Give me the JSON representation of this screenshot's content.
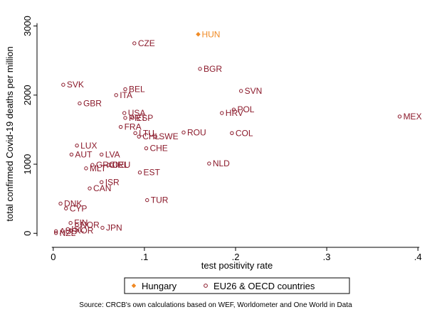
{
  "chart_data": {
    "type": "scatter",
    "xlabel": "test positivity rate",
    "ylabel": "total confirmed Covid-19 deaths per million",
    "xlim": [
      -0.01,
      0.41
    ],
    "ylim": [
      -100,
      3150
    ],
    "xticks": [
      {
        "value": 0,
        "label": "0"
      },
      {
        "value": 0.1,
        "label": ".1"
      },
      {
        "value": 0.2,
        "label": ".2"
      },
      {
        "value": 0.3,
        "label": ".3"
      },
      {
        "value": 0.4,
        "label": ".4"
      }
    ],
    "yticks": [
      {
        "value": 0,
        "label": "0"
      },
      {
        "value": 1000,
        "label": "1000"
      },
      {
        "value": 2000,
        "label": "2000"
      },
      {
        "value": 3000,
        "label": "3000"
      }
    ],
    "grid": false,
    "legend_position": "bottom",
    "colors": {
      "Hungary": "#f08a24",
      "EU26 & OECD countries": "#8b1a2b"
    },
    "series": [
      {
        "name": "Hungary",
        "marker": "filled-diamond",
        "points": [
          {
            "label": "HUN",
            "x": 0.159,
            "y": 2880
          }
        ]
      },
      {
        "name": "EU26 & OECD countries",
        "marker": "hollow-circle",
        "points": [
          {
            "label": "CZE",
            "x": 0.089,
            "y": 2750
          },
          {
            "label": "BGR",
            "x": 0.161,
            "y": 2380
          },
          {
            "label": "SVK",
            "x": 0.011,
            "y": 2150
          },
          {
            "label": "BEL",
            "x": 0.079,
            "y": 2085
          },
          {
            "label": "SVN",
            "x": 0.206,
            "y": 2060
          },
          {
            "label": "ITA",
            "x": 0.069,
            "y": 2000
          },
          {
            "label": "GBR",
            "x": 0.029,
            "y": 1880
          },
          {
            "label": "POL",
            "x": 0.198,
            "y": 1790
          },
          {
            "label": "HRV",
            "x": 0.185,
            "y": 1740
          },
          {
            "label": "MEX",
            "x": 0.38,
            "y": 1690
          },
          {
            "label": "USA",
            "x": 0.078,
            "y": 1740
          },
          {
            "label": "PRT",
            "x": 0.079,
            "y": 1670
          },
          {
            "label": "ESP",
            "x": 0.087,
            "y": 1670
          },
          {
            "label": "FRA",
            "x": 0.074,
            "y": 1540
          },
          {
            "label": "ROU",
            "x": 0.143,
            "y": 1460
          },
          {
            "label": "COL",
            "x": 0.196,
            "y": 1450
          },
          {
            "label": "LTU",
            "x": 0.09,
            "y": 1450
          },
          {
            "label": "CHL",
            "x": 0.094,
            "y": 1400
          },
          {
            "label": "SWE",
            "x": 0.112,
            "y": 1400
          },
          {
            "label": "LUX",
            "x": 0.026,
            "y": 1270
          },
          {
            "label": "CHE",
            "x": 0.102,
            "y": 1230
          },
          {
            "label": "AUT",
            "x": 0.02,
            "y": 1140
          },
          {
            "label": "LVA",
            "x": 0.053,
            "y": 1140
          },
          {
            "label": "NLD",
            "x": 0.171,
            "y": 1010
          },
          {
            "label": "GRC",
            "x": 0.043,
            "y": 990
          },
          {
            "label": "DEU",
            "x": 0.061,
            "y": 990
          },
          {
            "label": "IRL",
            "x": 0.064,
            "y": 990
          },
          {
            "label": "MLT",
            "x": 0.036,
            "y": 940
          },
          {
            "label": "EST",
            "x": 0.095,
            "y": 880
          },
          {
            "label": "ISR",
            "x": 0.053,
            "y": 740
          },
          {
            "label": "CAN",
            "x": 0.04,
            "y": 650
          },
          {
            "label": "TUR",
            "x": 0.103,
            "y": 480
          },
          {
            "label": "DNK",
            "x": 0.008,
            "y": 430
          },
          {
            "label": "CYP",
            "x": 0.014,
            "y": 360
          },
          {
            "label": "FIN",
            "x": 0.019,
            "y": 150
          },
          {
            "label": "NOR",
            "x": 0.026,
            "y": 120
          },
          {
            "label": "JPN",
            "x": 0.054,
            "y": 80
          },
          {
            "label": "ISL",
            "x": 0.016,
            "y": 60
          },
          {
            "label": "KOR",
            "x": 0.02,
            "y": 40
          },
          {
            "label": "AUS",
            "x": 0.003,
            "y": 30
          },
          {
            "label": "NZL",
            "x": 0.003,
            "y": 5
          }
        ]
      }
    ]
  },
  "legend": {
    "items": [
      {
        "label": "Hungary",
        "marker": "filled-diamond"
      },
      {
        "label": "EU26 & OECD countries",
        "marker": "hollow-circle"
      }
    ]
  },
  "source_note": "Source: CRCB's own calculations based on WEF, Worldometer and One World in Data"
}
